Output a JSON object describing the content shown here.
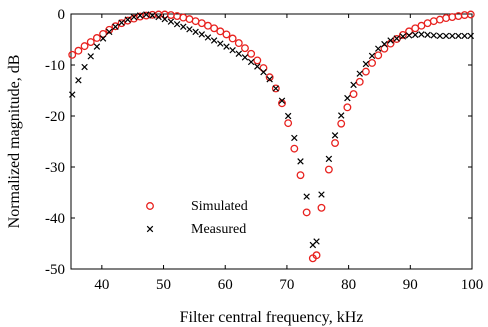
{
  "chart_data": {
    "type": "scatter",
    "xlabel": "Filter central frequency, kHz",
    "ylabel": "Normalized magnitude, dB",
    "xlim": [
      35,
      100
    ],
    "ylim": [
      -50,
      0
    ],
    "xticks": [
      40,
      50,
      60,
      70,
      80,
      90,
      100
    ],
    "yticks": [
      0,
      -10,
      -20,
      -30,
      -40,
      -50
    ],
    "grid": false,
    "legend_position": "lower-left",
    "series": [
      {
        "name": "Simulated",
        "marker": "circle",
        "color": "#e8221f",
        "x": [
          35.2,
          36.2,
          37.2,
          38.2,
          39.2,
          40.2,
          41.2,
          42.2,
          43.2,
          44.2,
          45.2,
          46.2,
          47.2,
          48.2,
          49.2,
          50.2,
          51.2,
          52.2,
          53.2,
          54.2,
          55.2,
          56.2,
          57.2,
          58.2,
          59.2,
          60.2,
          61.2,
          62.2,
          63.2,
          64.2,
          65.2,
          66.2,
          67.2,
          68.2,
          69.2,
          70.2,
          71.2,
          72.2,
          73.2,
          74.2,
          74.8,
          75.6,
          76.8,
          77.8,
          78.8,
          79.8,
          80.8,
          81.8,
          82.8,
          83.8,
          84.8,
          85.8,
          86.8,
          87.8,
          88.8,
          89.8,
          90.8,
          91.8,
          92.8,
          93.8,
          94.8,
          95.8,
          96.8,
          97.8,
          98.8,
          99.8
        ],
        "y": [
          -8.0,
          -7.2,
          -6.3,
          -5.5,
          -4.7,
          -3.9,
          -3.1,
          -2.4,
          -1.8,
          -1.3,
          -0.9,
          -0.5,
          -0.3,
          -0.15,
          -0.1,
          -0.1,
          -0.2,
          -0.4,
          -0.7,
          -1.0,
          -1.4,
          -1.8,
          -2.3,
          -2.8,
          -3.4,
          -4.0,
          -4.8,
          -5.7,
          -6.7,
          -7.8,
          -9.1,
          -10.6,
          -12.4,
          -14.6,
          -17.5,
          -21.4,
          -26.4,
          -31.6,
          -38.9,
          -47.9,
          -47.3,
          -38.0,
          -30.5,
          -25.3,
          -21.5,
          -18.3,
          -15.7,
          -13.3,
          -11.3,
          -9.6,
          -8.1,
          -6.8,
          -5.8,
          -4.9,
          -4.1,
          -3.4,
          -2.8,
          -2.3,
          -1.8,
          -1.4,
          -1.1,
          -0.8,
          -0.6,
          -0.4,
          -0.2,
          -0.1
        ]
      },
      {
        "name": "Measured",
        "marker": "cross",
        "color": "#000000",
        "x": [
          35.2,
          36.2,
          37.2,
          38.2,
          39.2,
          40.2,
          41.2,
          42.2,
          43.2,
          44.2,
          45.2,
          46.2,
          47.2,
          48.2,
          49.2,
          50.2,
          51.2,
          52.2,
          53.2,
          54.2,
          55.2,
          56.2,
          57.2,
          58.2,
          59.2,
          60.2,
          61.2,
          62.2,
          63.2,
          64.2,
          65.2,
          66.2,
          67.2,
          68.2,
          69.2,
          70.2,
          71.2,
          72.2,
          73.2,
          74.2,
          74.8,
          75.6,
          76.8,
          77.8,
          78.8,
          79.8,
          80.8,
          81.8,
          82.8,
          83.8,
          84.8,
          85.8,
          86.8,
          87.8,
          88.8,
          89.8,
          90.8,
          91.8,
          92.8,
          93.8,
          94.8,
          95.8,
          96.8,
          97.8,
          98.8,
          99.8
        ],
        "y": [
          -15.8,
          -13.0,
          -10.4,
          -8.3,
          -6.4,
          -4.8,
          -3.5,
          -2.5,
          -1.7,
          -1.1,
          -0.6,
          -0.3,
          -0.1,
          -0.3,
          -0.6,
          -1.0,
          -1.5,
          -2.0,
          -2.5,
          -3.0,
          -3.5,
          -4.0,
          -4.6,
          -5.2,
          -5.8,
          -6.4,
          -7.1,
          -7.8,
          -8.5,
          -9.4,
          -10.3,
          -11.4,
          -12.8,
          -14.6,
          -17.0,
          -20.0,
          -24.3,
          -28.9,
          -35.8,
          -45.3,
          -44.6,
          -35.4,
          -28.4,
          -23.8,
          -19.9,
          -16.5,
          -13.9,
          -11.7,
          -9.8,
          -8.2,
          -6.8,
          -5.9,
          -5.2,
          -4.8,
          -4.4,
          -4.2,
          -4.1,
          -4.0,
          -4.1,
          -4.2,
          -4.3,
          -4.3,
          -4.3,
          -4.3,
          -4.3,
          -4.3
        ]
      }
    ]
  }
}
